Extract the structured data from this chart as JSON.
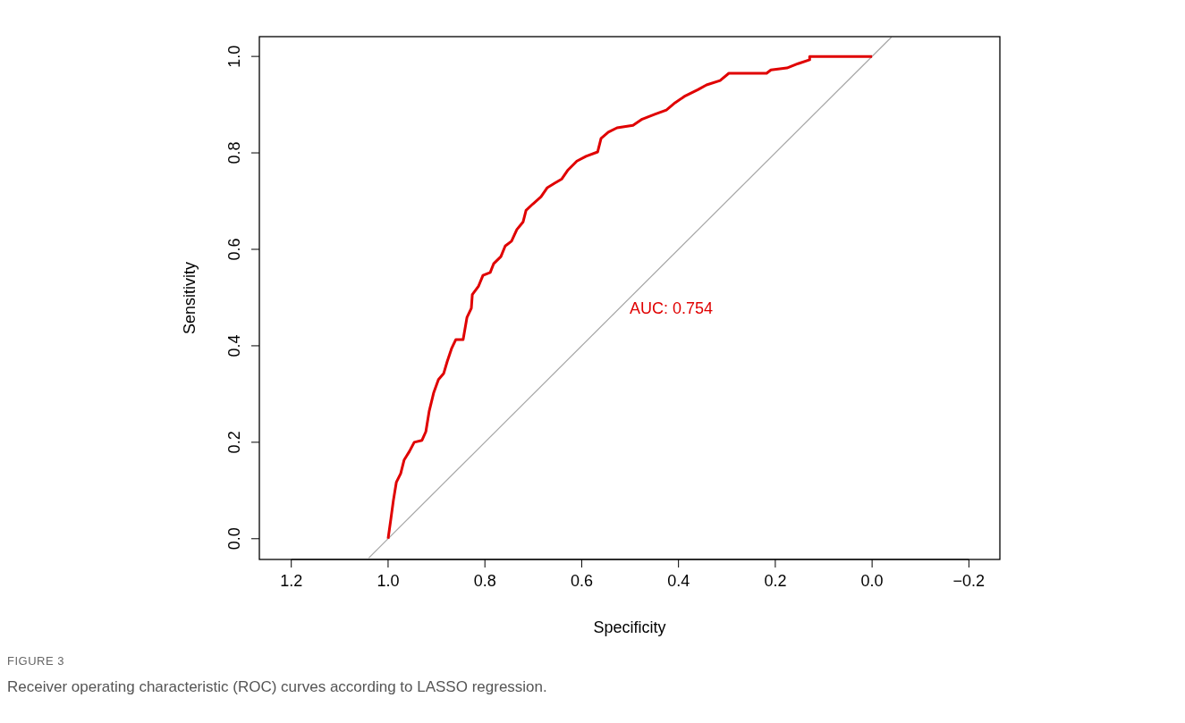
{
  "chart_data": {
    "type": "line",
    "xlabel": "Specificity",
    "ylabel": "Sensitivity",
    "xlim": [
      1.266,
      -0.264
    ],
    "ylim": [
      -0.043,
      1.041
    ],
    "xticks": [
      {
        "value": 1.2,
        "label": "1.2"
      },
      {
        "value": 1,
        "label": "1.0"
      },
      {
        "value": 0.8,
        "label": "0.8"
      },
      {
        "value": 0.6,
        "label": "0.6"
      },
      {
        "value": 0.4,
        "label": "0.4"
      },
      {
        "value": 0.2,
        "label": "0.2"
      },
      {
        "value": 0,
        "label": "0.0"
      },
      {
        "value": -0.2,
        "label": "−0.2"
      }
    ],
    "yticks": [
      {
        "value": 0,
        "label": "0.0"
      },
      {
        "value": 0.2,
        "label": "0.2"
      },
      {
        "value": 0.4,
        "label": "0.4"
      },
      {
        "value": 0.6,
        "label": "0.6"
      },
      {
        "value": 0.8,
        "label": "0.8"
      },
      {
        "value": 1,
        "label": "1.0"
      }
    ],
    "grid": false,
    "marker": "none",
    "line_style": "solid",
    "series": [
      {
        "color": "#a6a6a6",
        "x": [
          1.04,
          -0.04
        ],
        "values": [
          -0.04,
          1.04
        ]
      },
      {
        "color": "#e00000",
        "x": [
          1.0,
          0.994,
          0.989,
          0.983,
          0.974,
          0.967,
          0.956,
          0.946,
          0.93,
          0.922,
          0.915,
          0.906,
          0.896,
          0.885,
          0.878,
          0.869,
          0.86,
          0.845,
          0.837,
          0.828,
          0.826,
          0.813,
          0.804,
          0.789,
          0.782,
          0.767,
          0.758,
          0.745,
          0.734,
          0.721,
          0.715,
          0.701,
          0.684,
          0.671,
          0.656,
          0.641,
          0.628,
          0.61,
          0.591,
          0.567,
          0.56,
          0.545,
          0.527,
          0.494,
          0.475,
          0.449,
          0.425,
          0.407,
          0.388,
          0.36,
          0.342,
          0.314,
          0.296,
          0.218,
          0.209,
          0.176,
          0.153,
          0.129,
          0.129,
          0.0
        ],
        "values": [
          0,
          0.043,
          0.08,
          0.117,
          0.135,
          0.163,
          0.181,
          0.2,
          0.204,
          0.222,
          0.265,
          0.302,
          0.33,
          0.343,
          0.367,
          0.394,
          0.413,
          0.413,
          0.459,
          0.478,
          0.506,
          0.524,
          0.546,
          0.552,
          0.57,
          0.585,
          0.607,
          0.617,
          0.641,
          0.657,
          0.681,
          0.694,
          0.709,
          0.728,
          0.737,
          0.746,
          0.765,
          0.783,
          0.793,
          0.802,
          0.83,
          0.843,
          0.852,
          0.857,
          0.87,
          0.88,
          0.889,
          0.904,
          0.917,
          0.931,
          0.941,
          0.95,
          0.965,
          0.965,
          0.972,
          0.976,
          0.985,
          0.993,
          1.0,
          1.0
        ]
      }
    ],
    "annotations": [
      "AUC: 0.754",
      "FIGURE 3",
      "Receiver operating characteristic (ROC) curves according to LASSO regression."
    ]
  }
}
